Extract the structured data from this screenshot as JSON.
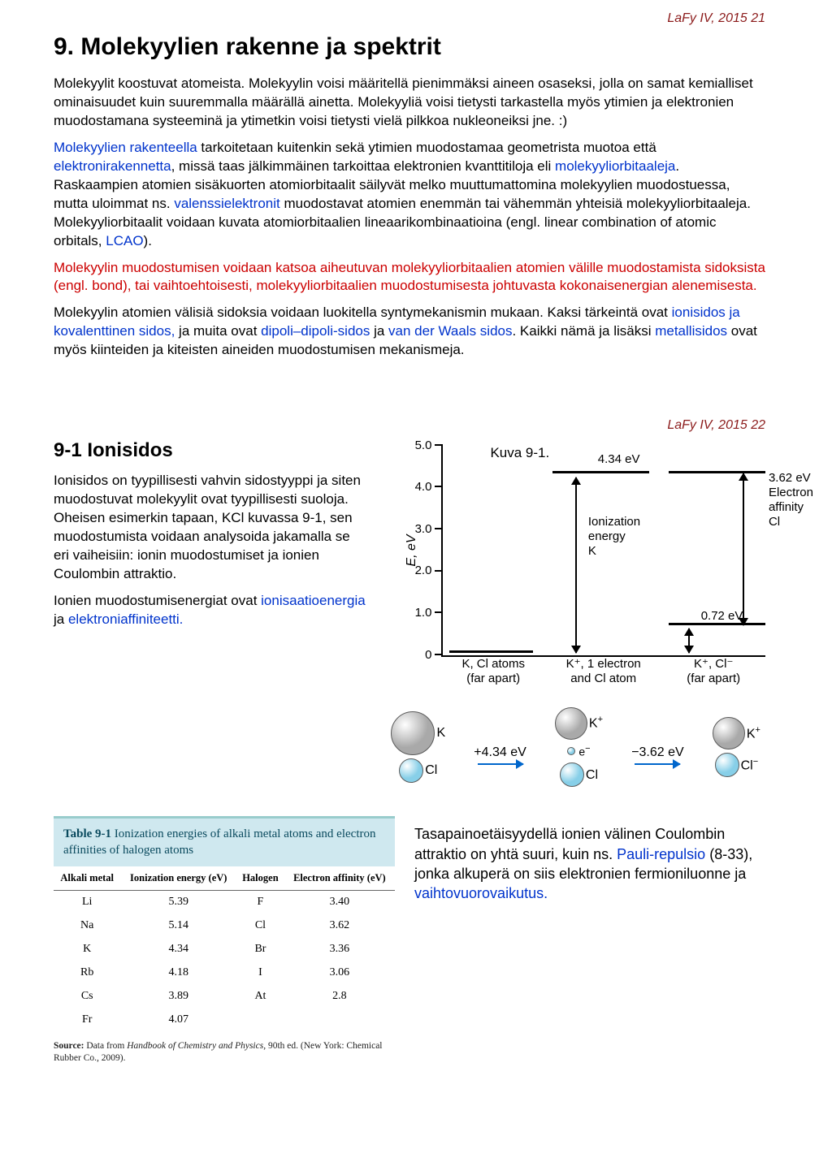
{
  "header1": "LaFy IV, 2015    21",
  "header2": "LaFy IV, 2015    22",
  "title": "9. Molekyylien rakenne ja spektrit",
  "p1_a": "Molekyylit koostuvat atomeista. Molekyylin voisi määritellä pienimmäksi aineen osaseksi, jolla on samat kemialliset ominaisuudet kuin suuremmalla määrällä ainetta. Molekyyliä voisi tietysti tarkastella myös ytimien ja elektronien muodostamana systeeminä ja ytimetkin voisi tietysti vielä pilkkoa nukleoneiksi jne. :)",
  "p2_seg1": "Molekyylien rakenteella",
  "p2_seg2": " tarkoitetaan kuitenkin sekä ytimien muodostamaa geometrista muotoa että ",
  "p2_seg3": "elektronirakennetta",
  "p2_seg4": ", missä taas jälkimmäinen tarkoittaa elektronien kvanttitiloja eli ",
  "p2_seg5": "molekyyliorbitaaleja",
  "p2_seg6": ". Raskaampien atomien sisäkuorten atomiorbitaalit säilyvät melko muuttumattomina molekyylien muodostuessa, mutta uloimmat ns. ",
  "p2_seg7": "valenssielektronit",
  "p2_seg8": " muodostavat atomien enemmän tai vähemmän yhteisiä molekyyliorbitaaleja. Molekyyliorbitaalit voidaan kuvata atomiorbitaalien lineaarikombinaatioina (engl. linear combination of atomic orbitals, ",
  "p2_seg9": "LCAO",
  "p2_seg10": ").",
  "p3": "Molekyylin muodostumisen voidaan katsoa aiheutuvan molekyyliorbitaalien atomien välille muodostamista sidoksista (engl. bond), tai vaihtoehtoisesti, molekyyliorbitaalien muodostumisesta johtuvasta kokonaisenergian alenemisesta.",
  "p4_a": "Molekyylin atomien välisiä sidoksia voidaan luokitella syntymekanismin mukaan. Kaksi tärkeintä ovat ",
  "p4_b": "ionisidos ja kovalenttinen sidos,",
  "p4_c": " ja muita ovat ",
  "p4_d": "dipoli–dipoli-sidos",
  "p4_e": " ja ",
  "p4_f": "van der Waals sidos",
  "p4_g": ". Kaikki nämä ja lisäksi ",
  "p4_h": "metallisidos",
  "p4_i": " ovat myös kiinteiden ja kiteisten aineiden muodostumisen mekanismeja.",
  "sec91": "9-1 Ionisidos",
  "s91_p1": "Ionisidos on tyypillisesti vahvin sidostyyppi ja siten muodostuvat molekyylit ovat tyypillisesti suoloja. Oheisen esimerkin tapaan, KCl kuvassa 9-1, sen muodostumista voidaan analysoida jakamalla se eri vaiheisiin: ionin muodostumiset ja ionien Coulombin attraktio.",
  "s91_p2a": "Ionien muodostumisenergiat ovat ",
  "s91_p2b": "ionisaatioenergia",
  "s91_p2c": " ja ",
  "s91_p2d": "elektroniaffiniteetti.",
  "chart": {
    "kuva_label": "Kuva 9-1.",
    "ylabel": "E, eV",
    "ylim_max": 5.0,
    "yticks": [
      "5.0",
      "4.0",
      "3.0",
      "2.0",
      "1.0",
      "0"
    ],
    "e_434": "4.34 eV",
    "e_362": "3.62 eV",
    "e_072": "0.72 eV",
    "lbl_ion_a": "Ionization",
    "lbl_ion_b": "energy",
    "lbl_ion_c": "K",
    "lbl_aff_a": "Electron",
    "lbl_aff_b": "affinity",
    "lbl_aff_c": "Cl",
    "x1a": "K, Cl atoms",
    "x1b": "(far apart)",
    "x2a": "K⁺, 1 electron",
    "x2b": "and Cl atom",
    "x3a": "K⁺, Cl⁻",
    "x3b": "(far apart)"
  },
  "atoms": {
    "k": "K",
    "kp": "K⁺",
    "cl": "Cl",
    "clm": "Cl⁻",
    "em": "e⁻",
    "ev_p": "+4.34 eV",
    "ev_m": "−3.62 eV",
    "color_k": "#a9a9a9",
    "color_cl": "#87cfe8",
    "color_e": "#87cfe8"
  },
  "table": {
    "caption_no": "Table 9-1 ",
    "caption": "Ionization energies of alkali metal atoms and electron affinities of halogen atoms",
    "cols": [
      "Alkali metal",
      "Ionization energy (eV)",
      "Halogen",
      "Electron affinity (eV)"
    ],
    "rows": [
      [
        "Li",
        "5.39",
        "F",
        "3.40"
      ],
      [
        "Na",
        "5.14",
        "Cl",
        "3.62"
      ],
      [
        "K",
        "4.34",
        "Br",
        "3.36"
      ],
      [
        "Rb",
        "4.18",
        "I",
        "3.06"
      ],
      [
        "Cs",
        "3.89",
        "At",
        "2.8"
      ],
      [
        "Fr",
        "4.07",
        "",
        ""
      ]
    ],
    "source_a": "Source:",
    "source_b": " Data from ",
    "source_c": "Handbook of Chemistry and Physics",
    "source_d": ", 90th ed. (New York: Chemical Rubber Co., 2009)."
  },
  "concl_a": "Tasapainoetäisyydellä ionien välinen Coulombin attraktio on yhtä suuri, kuin ns. ",
  "concl_b": "Pauli-repulsio",
  "concl_c": " (8-33), jonka alkuperä on siis elektronien fermioniluonne ja ",
  "concl_d": "vaihtovuorovaikutus."
}
